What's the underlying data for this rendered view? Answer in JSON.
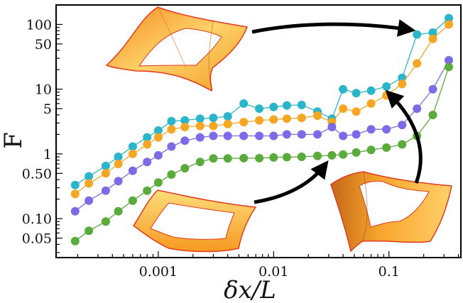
{
  "chart_data": {
    "type": "line",
    "xlabel": "δx/L",
    "ylabel": "F",
    "x_scale": "log",
    "y_scale": "log",
    "xlim": [
      0.00013,
      0.42
    ],
    "ylim": [
      0.025,
      200
    ],
    "grid": false,
    "legend": "none",
    "x_ticks": [
      {
        "value": 0.001,
        "label": "0.001"
      },
      {
        "value": 0.01,
        "label": "0.01"
      },
      {
        "value": 0.1,
        "label": "0.1"
      }
    ],
    "y_ticks": [
      {
        "value": 0.05,
        "label": "0.05"
      },
      {
        "value": 0.1,
        "label": "0.10"
      },
      {
        "value": 0.5,
        "label": "0.50"
      },
      {
        "value": 1,
        "label": "1"
      },
      {
        "value": 5,
        "label": "5"
      },
      {
        "value": 10,
        "label": "10"
      },
      {
        "value": 50,
        "label": "50"
      },
      {
        "value": 100,
        "label": "100"
      }
    ],
    "x": [
      0.00019,
      0.00025,
      0.00035,
      0.00045,
      0.0006,
      0.0008,
      0.001,
      0.0013,
      0.0017,
      0.0023,
      0.003,
      0.004,
      0.0055,
      0.0075,
      0.01,
      0.013,
      0.0175,
      0.024,
      0.032,
      0.04,
      0.052,
      0.07,
      0.095,
      0.13,
      0.175,
      0.24,
      0.33
    ],
    "series": [
      {
        "color": "#2bb5c9",
        "values": [
          0.33,
          0.45,
          0.65,
          0.9,
          1.3,
          1.8,
          2.3,
          3.2,
          3.3,
          3.5,
          3.6,
          3.8,
          6.0,
          5.0,
          5.3,
          5.6,
          5.7,
          4.5,
          3.5,
          10.0,
          8.7,
          9.5,
          11.0,
          15.0,
          70.0,
          75.0,
          125.0
        ]
      },
      {
        "color": "#f5a623",
        "values": [
          0.24,
          0.35,
          0.5,
          0.7,
          1.0,
          1.4,
          1.8,
          2.4,
          2.6,
          2.7,
          2.7,
          2.9,
          3.1,
          3.3,
          3.4,
          3.5,
          3.6,
          3.9,
          3.1,
          5.0,
          4.5,
          6.0,
          8.0,
          12.0,
          25.0,
          60.0,
          100.0
        ]
      },
      {
        "color": "#7b6ce6",
        "values": [
          0.13,
          0.19,
          0.27,
          0.38,
          0.55,
          0.75,
          0.95,
          1.3,
          1.6,
          1.8,
          1.9,
          1.9,
          1.9,
          1.9,
          1.9,
          2.0,
          2.0,
          2.0,
          2.6,
          1.9,
          2.0,
          2.4,
          2.4,
          2.8,
          5.0,
          10.0,
          28.0
        ]
      },
      {
        "color": "#5aaa3c",
        "values": [
          0.045,
          0.065,
          0.09,
          0.13,
          0.19,
          0.27,
          0.36,
          0.48,
          0.6,
          0.75,
          0.85,
          0.85,
          0.86,
          0.86,
          0.88,
          0.89,
          0.9,
          0.93,
          0.95,
          0.98,
          1.05,
          1.15,
          1.25,
          1.4,
          1.9,
          4.0,
          22.0
        ]
      }
    ]
  },
  "insets": [
    {
      "name": "inset-twisted-upper"
    },
    {
      "name": "inset-flat-square"
    },
    {
      "name": "inset-twisted-right"
    }
  ],
  "colors": {
    "ribbon_fill": "#f7a12b",
    "ribbon_light": "#ffd36e",
    "ribbon_edge": "#e23a1c",
    "arrow": "#000000",
    "axis": "#000000"
  }
}
